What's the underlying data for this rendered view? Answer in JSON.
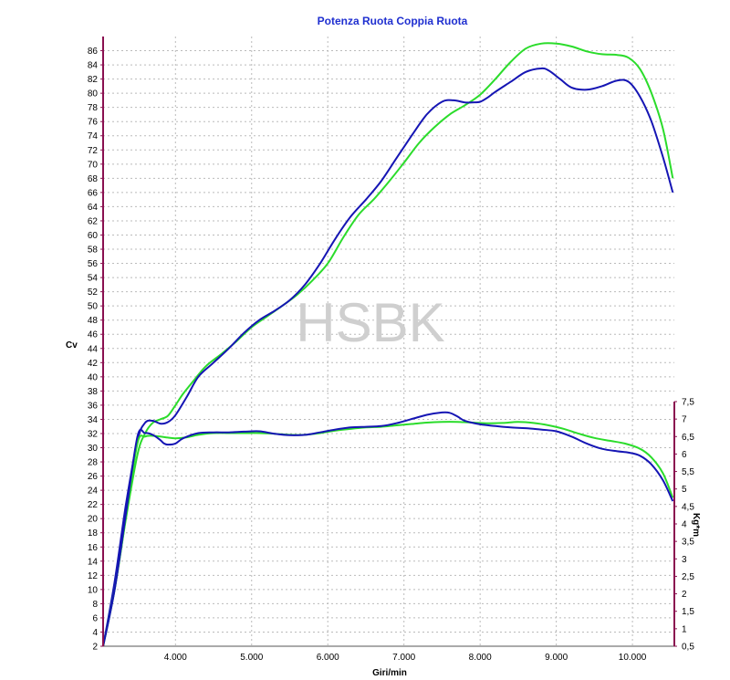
{
  "chart_data": {
    "type": "line",
    "title": "Potenza Ruota Coppia Ruota",
    "watermark": "HSBK",
    "xlabel": "Giri/min",
    "ylabel_left": "Cv",
    "ylabel_right": "Kg*m",
    "xlim": [
      3050,
      10550
    ],
    "x_ticks": [
      4000,
      5000,
      6000,
      7000,
      8000,
      9000,
      10000
    ],
    "x_tick_labels": [
      "4.000",
      "5.000",
      "6.000",
      "7.000",
      "8.000",
      "9.000",
      "10.000"
    ],
    "ylim_left": [
      2,
      88
    ],
    "y_left_ticks": [
      2,
      4,
      6,
      8,
      10,
      12,
      14,
      16,
      18,
      20,
      22,
      24,
      26,
      28,
      30,
      32,
      34,
      36,
      38,
      40,
      42,
      44,
      46,
      48,
      50,
      52,
      54,
      56,
      58,
      60,
      62,
      64,
      66,
      68,
      70,
      72,
      74,
      76,
      78,
      80,
      82,
      84,
      86
    ],
    "y_left_tick_labels": [
      "2",
      "4",
      "6",
      "8",
      "10",
      "12",
      "14",
      "16",
      "18",
      "20",
      "22",
      "24",
      "26",
      "28",
      "30",
      "32",
      "34",
      "36",
      "38",
      "40",
      "42",
      "44",
      "46",
      "48",
      "50",
      "52",
      "54",
      "56",
      "58",
      "60",
      "62",
      "64",
      "66",
      "68",
      "70",
      "72",
      "74",
      "76",
      "78",
      "80",
      "82",
      "84",
      "86"
    ],
    "ylim_right": [
      0.5,
      7.5
    ],
    "y_right_ticks": [
      0.5,
      1,
      1.5,
      2,
      2.5,
      3,
      3.5,
      4,
      4.5,
      5,
      5.5,
      6,
      6.5,
      7,
      7.5
    ],
    "y_right_tick_labels": [
      "0,5",
      "1",
      "1,5",
      "2",
      "2,5",
      "3",
      "3,5",
      "4",
      "4,5",
      "5",
      "5,5",
      "6",
      "6,5",
      "7",
      "7,5"
    ],
    "grid": true,
    "colors": {
      "blue": "#1515b4",
      "green": "#2bdc2b",
      "title": "#1f2fd0",
      "axis": "#8a1050",
      "grid": "#bbbbbb"
    },
    "series": [
      {
        "color": "#2bdc2b",
        "axis": "left",
        "x": [
          3050,
          3200,
          3350,
          3500,
          3600,
          3700,
          3800,
          3900,
          4000,
          4100,
          4250,
          4400,
          4600,
          4800,
          5000,
          5200,
          5400,
          5600,
          5800,
          6000,
          6200,
          6400,
          6600,
          6800,
          7000,
          7200,
          7400,
          7600,
          7800,
          8000,
          8200,
          8400,
          8600,
          8800,
          9000,
          9200,
          9400,
          9600,
          9800,
          9950,
          10100,
          10250,
          10400,
          10530
        ],
        "y": [
          2,
          10,
          20,
          29,
          32,
          33.5,
          34,
          34.5,
          36,
          37.6,
          39.6,
          41.5,
          43.2,
          45,
          47,
          48.5,
          50,
          51.6,
          53.6,
          56,
          59.6,
          62.8,
          65,
          67.5,
          70.2,
          73,
          75.2,
          77,
          78.3,
          79.8,
          82,
          84.4,
          86.3,
          87,
          87,
          86.6,
          85.9,
          85.5,
          85.4,
          85,
          83.4,
          80,
          75,
          68
        ]
      },
      {
        "color": "#1515b4",
        "axis": "left",
        "x": [
          3050,
          3200,
          3350,
          3500,
          3600,
          3700,
          3800,
          3900,
          4000,
          4150,
          4300,
          4500,
          4700,
          4900,
          5100,
          5300,
          5500,
          5700,
          5900,
          6100,
          6300,
          6500,
          6700,
          6900,
          7100,
          7300,
          7500,
          7650,
          7800,
          7900,
          8000,
          8100,
          8200,
          8400,
          8600,
          8800,
          8900,
          9050,
          9200,
          9400,
          9600,
          9800,
          9950,
          10100,
          10250,
          10400,
          10530
        ],
        "y": [
          2,
          11,
          22,
          31,
          33.5,
          33.8,
          33.4,
          33.6,
          34.6,
          37.2,
          40,
          42,
          44,
          46.2,
          48,
          49.3,
          50.8,
          53,
          56,
          59.5,
          62.6,
          65,
          67.6,
          70.8,
          74,
          77,
          78.8,
          79,
          78.7,
          78.7,
          78.8,
          79.4,
          80.2,
          81.6,
          83,
          83.5,
          83.2,
          82,
          80.8,
          80.5,
          81,
          81.8,
          81.6,
          79.5,
          76,
          71,
          66
        ]
      },
      {
        "color": "#2bdc2b",
        "axis": "right",
        "x": [
          3050,
          3200,
          3350,
          3500,
          3600,
          3700,
          3800,
          3900,
          4000,
          4150,
          4300,
          4500,
          4700,
          4900,
          5100,
          5300,
          5500,
          5700,
          5900,
          6100,
          6300,
          6500,
          6700,
          6900,
          7100,
          7300,
          7500,
          7700,
          7900,
          8100,
          8300,
          8500,
          8700,
          8900,
          9100,
          9300,
          9500,
          9700,
          9900,
          10100,
          10250,
          10400,
          10530
        ],
        "y": [
          0.5,
          2.1,
          4.2,
          6.3,
          6.5,
          6.52,
          6.5,
          6.47,
          6.45,
          6.48,
          6.55,
          6.6,
          6.6,
          6.6,
          6.6,
          6.58,
          6.55,
          6.55,
          6.6,
          6.67,
          6.72,
          6.76,
          6.78,
          6.82,
          6.86,
          6.9,
          6.92,
          6.92,
          6.9,
          6.88,
          6.89,
          6.92,
          6.89,
          6.82,
          6.72,
          6.58,
          6.46,
          6.38,
          6.3,
          6.15,
          5.9,
          5.45,
          4.75
        ]
      },
      {
        "color": "#1515b4",
        "axis": "right",
        "x": [
          3050,
          3200,
          3350,
          3500,
          3600,
          3700,
          3800,
          3850,
          3900,
          4000,
          4100,
          4300,
          4500,
          4700,
          4900,
          5100,
          5300,
          5500,
          5700,
          5900,
          6100,
          6300,
          6500,
          6700,
          6900,
          7100,
          7300,
          7500,
          7600,
          7700,
          7800,
          8000,
          8200,
          8400,
          8600,
          8800,
          9000,
          9200,
          9400,
          9600,
          9800,
          9950,
          10100,
          10250,
          10400,
          10530
        ],
        "y": [
          0.5,
          2.1,
          4.3,
          6.5,
          6.6,
          6.55,
          6.4,
          6.3,
          6.27,
          6.3,
          6.45,
          6.6,
          6.62,
          6.62,
          6.64,
          6.65,
          6.58,
          6.54,
          6.55,
          6.62,
          6.7,
          6.76,
          6.78,
          6.8,
          6.88,
          7.0,
          7.12,
          7.19,
          7.18,
          7.08,
          6.95,
          6.85,
          6.8,
          6.76,
          6.74,
          6.7,
          6.65,
          6.5,
          6.3,
          6.15,
          6.08,
          6.04,
          5.95,
          5.7,
          5.25,
          4.65
        ]
      }
    ]
  }
}
